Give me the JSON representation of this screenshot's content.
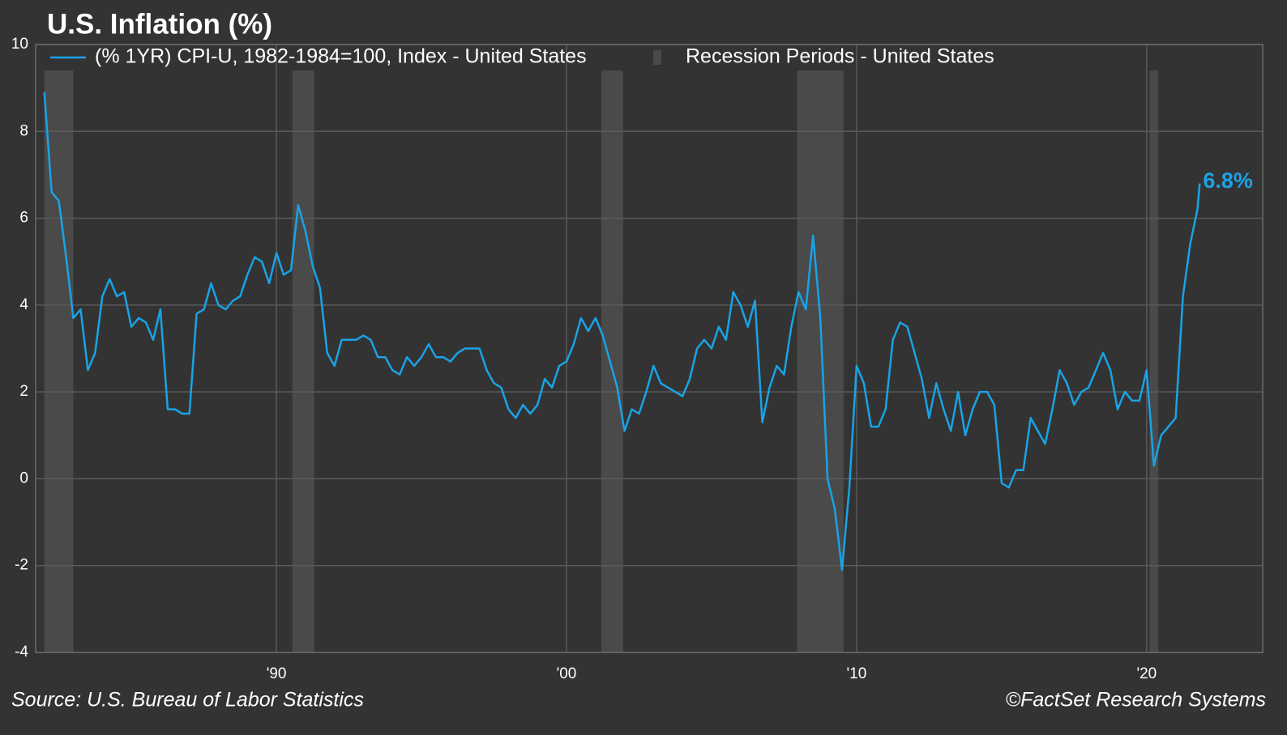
{
  "chart_data": {
    "type": "line",
    "title": "U.S. Inflation (%)",
    "source": "Source: U.S. Bureau of Labor Statistics",
    "credit": "©FactSet Research Systems",
    "annotation": "6.8%",
    "xlim": [
      1981.7,
      2024
    ],
    "xticks": [
      {
        "value": 1990,
        "label": "'90"
      },
      {
        "value": 2000,
        "label": "'00"
      },
      {
        "value": 2010,
        "label": "'10"
      },
      {
        "value": 2020,
        "label": "'20"
      }
    ],
    "ylim": [
      -4,
      10
    ],
    "yticks": [
      -4,
      -2,
      0,
      2,
      4,
      6,
      8,
      10
    ],
    "grid": true,
    "recession_name": "Recession Periods - United States",
    "recession_color": "#4a4a4a",
    "recessions": [
      [
        1982.0,
        1983.0
      ],
      [
        1990.55,
        1991.3
      ],
      [
        2001.2,
        2001.95
      ],
      [
        2007.95,
        2009.55
      ],
      [
        2020.1,
        2020.4
      ]
    ],
    "x": [
      1982,
      1982.25,
      1982.5,
      1982.75,
      1983,
      1983.25,
      1983.5,
      1983.75,
      1984,
      1984.25,
      1984.5,
      1984.75,
      1985,
      1985.25,
      1985.5,
      1985.75,
      1986,
      1986.25,
      1986.5,
      1986.75,
      1987,
      1987.25,
      1987.5,
      1987.75,
      1988,
      1988.25,
      1988.5,
      1988.75,
      1989,
      1989.25,
      1989.5,
      1989.75,
      1990,
      1990.25,
      1990.5,
      1990.75,
      1991,
      1991.25,
      1991.5,
      1991.75,
      1992,
      1992.25,
      1992.5,
      1992.75,
      1993,
      1993.25,
      1993.5,
      1993.75,
      1994,
      1994.25,
      1994.5,
      1994.75,
      1995,
      1995.25,
      1995.5,
      1995.75,
      1996,
      1996.25,
      1996.5,
      1996.75,
      1997,
      1997.25,
      1997.5,
      1997.75,
      1998,
      1998.25,
      1998.5,
      1998.75,
      1999,
      1999.25,
      1999.5,
      1999.75,
      2000,
      2000.25,
      2000.5,
      2000.75,
      2001,
      2001.25,
      2001.5,
      2001.75,
      2002,
      2002.25,
      2002.5,
      2002.75,
      2003,
      2003.25,
      2003.5,
      2003.75,
      2004,
      2004.25,
      2004.5,
      2004.75,
      2005,
      2005.25,
      2005.5,
      2005.75,
      2006,
      2006.25,
      2006.5,
      2006.75,
      2007,
      2007.25,
      2007.5,
      2007.75,
      2008,
      2008.25,
      2008.5,
      2008.75,
      2009,
      2009.25,
      2009.5,
      2009.75,
      2010,
      2010.25,
      2010.5,
      2010.75,
      2011,
      2011.25,
      2011.5,
      2011.75,
      2012,
      2012.25,
      2012.5,
      2012.75,
      2013,
      2013.25,
      2013.5,
      2013.75,
      2014,
      2014.25,
      2014.5,
      2014.75,
      2015,
      2015.25,
      2015.5,
      2015.75,
      2016,
      2016.25,
      2016.5,
      2016.75,
      2017,
      2017.25,
      2017.5,
      2017.75,
      2018,
      2018.25,
      2018.5,
      2018.75,
      2019,
      2019.25,
      2019.5,
      2019.75,
      2020,
      2020.25,
      2020.5,
      2020.75,
      2021,
      2021.25,
      2021.5,
      2021.75,
      2021.83
    ],
    "series": [
      {
        "name": "(% 1YR) CPI-U, 1982-1984=100, Index - United States",
        "color": "#19a3e6",
        "values": [
          8.9,
          6.6,
          6.4,
          5.1,
          3.7,
          3.9,
          2.5,
          2.9,
          4.2,
          4.6,
          4.2,
          4.3,
          3.5,
          3.7,
          3.6,
          3.2,
          3.9,
          1.6,
          1.6,
          1.5,
          1.5,
          3.8,
          3.9,
          4.5,
          4.0,
          3.9,
          4.1,
          4.2,
          4.7,
          5.1,
          5.0,
          4.5,
          5.2,
          4.7,
          4.8,
          6.3,
          5.7,
          4.9,
          4.4,
          2.9,
          2.6,
          3.2,
          3.2,
          3.2,
          3.3,
          3.2,
          2.8,
          2.8,
          2.5,
          2.4,
          2.8,
          2.6,
          2.8,
          3.1,
          2.8,
          2.8,
          2.7,
          2.9,
          3.0,
          3.0,
          3.0,
          2.5,
          2.2,
          2.1,
          1.6,
          1.4,
          1.7,
          1.5,
          1.7,
          2.3,
          2.1,
          2.6,
          2.7,
          3.1,
          3.7,
          3.4,
          3.7,
          3.3,
          2.7,
          2.1,
          1.1,
          1.6,
          1.5,
          2.0,
          2.6,
          2.2,
          2.1,
          2.0,
          1.9,
          2.3,
          3.0,
          3.2,
          3.0,
          3.5,
          3.2,
          4.3,
          4.0,
          3.5,
          4.1,
          1.3,
          2.1,
          2.6,
          2.4,
          3.5,
          4.3,
          3.9,
          5.6,
          3.7,
          0.0,
          -0.7,
          -2.1,
          -0.2,
          2.6,
          2.2,
          1.2,
          1.2,
          1.6,
          3.2,
          3.6,
          3.5,
          2.9,
          2.3,
          1.4,
          2.2,
          1.6,
          1.1,
          2.0,
          1.0,
          1.6,
          2.0,
          2.0,
          1.7,
          -0.1,
          -0.2,
          0.2,
          0.2,
          1.4,
          1.1,
          0.8,
          1.6,
          2.5,
          2.2,
          1.7,
          2.0,
          2.1,
          2.5,
          2.9,
          2.5,
          1.6,
          2.0,
          1.8,
          1.8,
          2.5,
          0.3,
          1.0,
          1.2,
          1.4,
          4.2,
          5.4,
          6.2,
          6.8
        ]
      }
    ]
  }
}
